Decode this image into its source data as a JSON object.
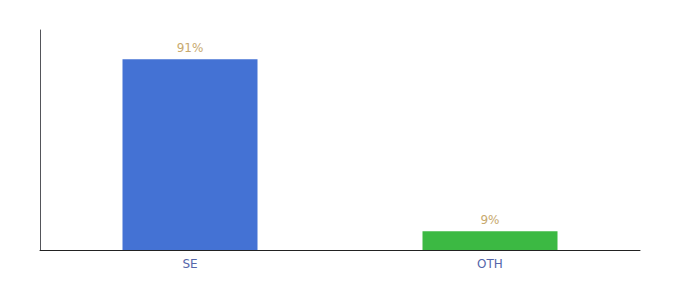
{
  "chart_data": {
    "type": "bar",
    "categories": [
      "SE",
      "OTH"
    ],
    "values": [
      91,
      9
    ],
    "value_labels": [
      "91%",
      "9%"
    ],
    "colors": [
      "#4472d4",
      "#3cb943"
    ],
    "ylim": [
      0,
      105
    ],
    "grid": false,
    "data_labels": true,
    "tick_labels": "x"
  }
}
